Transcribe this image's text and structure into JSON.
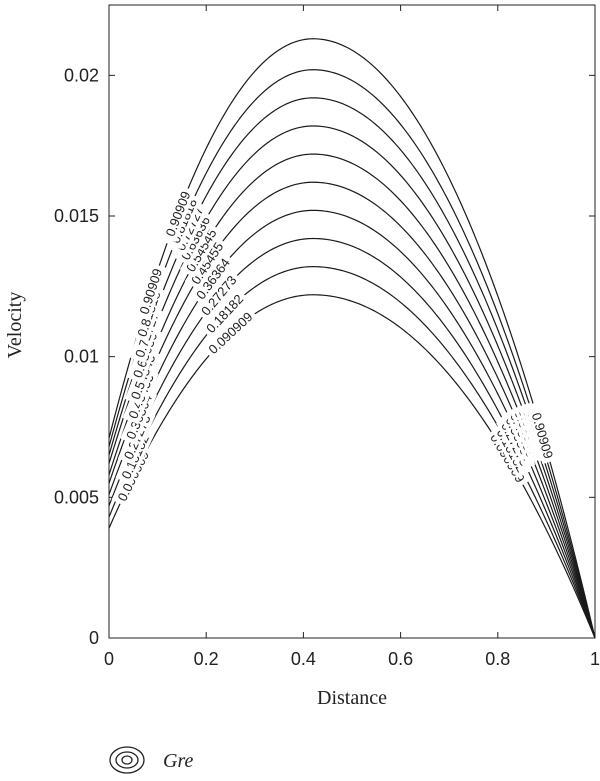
{
  "chart_data": {
    "type": "line",
    "xlabel": "Distance",
    "ylabel": "Velocity",
    "xlim": [
      0,
      1
    ],
    "ylim": [
      0,
      0.0225
    ],
    "x_ticks": [
      "0",
      "0.2",
      "0.4",
      "0.6",
      "0.8",
      "1"
    ],
    "y_ticks": [
      "0",
      "0.005",
      "0.01",
      "0.015",
      "0.02"
    ],
    "grid": false,
    "legend": {
      "position": "bottom-left",
      "entries": [
        "Gre"
      ]
    },
    "series": [
      {
        "name": "0.090909",
        "peak_x": 0.42,
        "peak_y": 0.0122,
        "y_at_x0": 0.0039,
        "y_at_x1": 0
      },
      {
        "name": "0.18182",
        "peak_x": 0.42,
        "peak_y": 0.0132,
        "y_at_x0": 0.0043,
        "y_at_x1": 0
      },
      {
        "name": "0.27273",
        "peak_x": 0.42,
        "peak_y": 0.0142,
        "y_at_x0": 0.0047,
        "y_at_x1": 0
      },
      {
        "name": "0.36364",
        "peak_x": 0.42,
        "peak_y": 0.0152,
        "y_at_x0": 0.0051,
        "y_at_x1": 0
      },
      {
        "name": "0.45455",
        "peak_x": 0.42,
        "peak_y": 0.0162,
        "y_at_x0": 0.0055,
        "y_at_x1": 0
      },
      {
        "name": "0.54545",
        "peak_x": 0.42,
        "peak_y": 0.0172,
        "y_at_x0": 0.0058,
        "y_at_x1": 0
      },
      {
        "name": "0.63636",
        "peak_x": 0.42,
        "peak_y": 0.0182,
        "y_at_x0": 0.0062,
        "y_at_x1": 0
      },
      {
        "name": "0.72727",
        "peak_x": 0.42,
        "peak_y": 0.0192,
        "y_at_x0": 0.0065,
        "y_at_x1": 0
      },
      {
        "name": "0.81818",
        "peak_x": 0.42,
        "peak_y": 0.0202,
        "y_at_x0": 0.0068,
        "y_at_x1": 0
      },
      {
        "name": "0.90909",
        "peak_x": 0.42,
        "peak_y": 0.0213,
        "y_at_x0": 0.0071,
        "y_at_x1": 0
      }
    ]
  },
  "colors": {
    "line": "#1a1a1a",
    "axis": "#222222",
    "background": "#ffffff"
  }
}
